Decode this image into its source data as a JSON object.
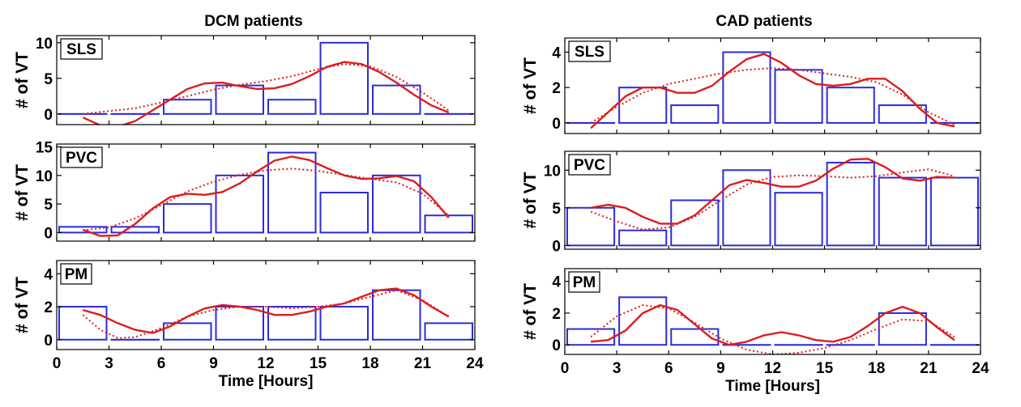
{
  "colors": {
    "bars": "#2b2bdc",
    "smooth": "#dd1d1d",
    "fit": "#dd1d1d",
    "axis": "#000000"
  },
  "chart_data": [
    {
      "type": "bar",
      "title": "DCM patients",
      "xlabel": "Time [Hours]",
      "xlim": [
        0,
        24
      ],
      "xticks": [
        0,
        3,
        6,
        9,
        12,
        15,
        18,
        21,
        24
      ],
      "bin_centers": [
        1.5,
        4.5,
        7.5,
        10.5,
        13.5,
        16.5,
        19.5,
        22.5
      ],
      "panels": [
        {
          "label": "SLS",
          "ylabel": "# of VT",
          "ylim": [
            -1.5,
            11
          ],
          "yticks": [
            0,
            5,
            10
          ],
          "values": [
            0,
            0,
            2,
            4,
            2,
            10,
            4,
            0
          ],
          "smooth": [
            [
              1.5,
              -0.5
            ],
            [
              2.5,
              -1.6
            ],
            [
              3.5,
              -1.8
            ],
            [
              4.5,
              -1.0
            ],
            [
              5.5,
              0.5
            ],
            [
              6.5,
              2.0
            ],
            [
              7.5,
              3.5
            ],
            [
              8.5,
              4.3
            ],
            [
              9.5,
              4.4
            ],
            [
              10.5,
              3.9
            ],
            [
              11.5,
              3.5
            ],
            [
              12.5,
              3.6
            ],
            [
              13.5,
              4.2
            ],
            [
              14.5,
              5.3
            ],
            [
              15.5,
              6.6
            ],
            [
              16.5,
              7.3
            ],
            [
              17.5,
              7.0
            ],
            [
              18.5,
              5.9
            ],
            [
              19.5,
              4.4
            ],
            [
              20.5,
              2.7
            ],
            [
              21.5,
              1.2
            ],
            [
              22.5,
              0.2
            ]
          ],
          "fit": [
            [
              1.5,
              0.0
            ],
            [
              3,
              0.4
            ],
            [
              4.5,
              0.8
            ],
            [
              6,
              1.6
            ],
            [
              7.5,
              2.5
            ],
            [
              9,
              3.4
            ],
            [
              10.5,
              4.1
            ],
            [
              12,
              4.6
            ],
            [
              13.5,
              5.3
            ],
            [
              15,
              6.3
            ],
            [
              16.5,
              7.0
            ],
            [
              18,
              6.7
            ],
            [
              19.5,
              5.2
            ],
            [
              21,
              3.0
            ],
            [
              22.5,
              0.5
            ]
          ]
        },
        {
          "label": "PVC",
          "ylabel": "# of VT",
          "ylim": [
            -1.5,
            15.5
          ],
          "yticks": [
            0,
            5,
            10,
            15
          ],
          "values": [
            1,
            1,
            5,
            10,
            14,
            7,
            10,
            3
          ],
          "smooth": [
            [
              1.5,
              0.5
            ],
            [
              2.5,
              -0.6
            ],
            [
              3.5,
              -0.5
            ],
            [
              4.5,
              1.5
            ],
            [
              5.5,
              4.2
            ],
            [
              6.5,
              6.2
            ],
            [
              7.5,
              6.8
            ],
            [
              8.5,
              6.6
            ],
            [
              9.5,
              7.1
            ],
            [
              10.5,
              8.6
            ],
            [
              11.5,
              10.7
            ],
            [
              12.5,
              12.6
            ],
            [
              13.5,
              13.3
            ],
            [
              14.5,
              12.7
            ],
            [
              15.5,
              11.3
            ],
            [
              16.5,
              10.0
            ],
            [
              17.5,
              9.4
            ],
            [
              18.5,
              9.5
            ],
            [
              19.5,
              9.9
            ],
            [
              20.5,
              9.0
            ],
            [
              21.5,
              6.2
            ],
            [
              22.5,
              2.6
            ]
          ],
          "fit": [
            [
              1.5,
              0.4
            ],
            [
              3,
              0.9
            ],
            [
              4.5,
              2.5
            ],
            [
              6,
              4.8
            ],
            [
              7.5,
              7.2
            ],
            [
              9,
              8.9
            ],
            [
              10.5,
              10.1
            ],
            [
              12,
              10.9
            ],
            [
              13.5,
              11.2
            ],
            [
              15,
              10.8
            ],
            [
              16.5,
              10.1
            ],
            [
              18,
              9.4
            ],
            [
              19.5,
              8.8
            ],
            [
              21,
              6.8
            ],
            [
              22.5,
              3.0
            ]
          ]
        },
        {
          "label": "PM",
          "ylabel": "# of VT",
          "ylim": [
            -0.6,
            4.8
          ],
          "yticks": [
            0,
            2,
            4
          ],
          "values": [
            2,
            0,
            1,
            2,
            2,
            2,
            3,
            1
          ],
          "smooth": [
            [
              1.5,
              1.8
            ],
            [
              2.5,
              1.5
            ],
            [
              3.5,
              1.0
            ],
            [
              4.5,
              0.6
            ],
            [
              5.5,
              0.4
            ],
            [
              6.5,
              0.8
            ],
            [
              7.5,
              1.4
            ],
            [
              8.5,
              1.9
            ],
            [
              9.5,
              2.1
            ],
            [
              10.5,
              2.0
            ],
            [
              11.5,
              1.8
            ],
            [
              12.5,
              1.5
            ],
            [
              13.5,
              1.5
            ],
            [
              14.5,
              1.7
            ],
            [
              15.5,
              2.0
            ],
            [
              16.5,
              2.2
            ],
            [
              17.5,
              2.6
            ],
            [
              18.5,
              3.0
            ],
            [
              19.5,
              3.1
            ],
            [
              20.5,
              2.7
            ],
            [
              21.5,
              2.0
            ],
            [
              22.5,
              1.4
            ]
          ],
          "fit": [
            [
              1.5,
              1.5
            ],
            [
              2.5,
              0.6
            ],
            [
              3.5,
              0.1
            ],
            [
              4.5,
              0.15
            ],
            [
              6,
              0.7
            ],
            [
              7.5,
              1.4
            ],
            [
              9,
              1.8
            ],
            [
              10.5,
              2.0
            ],
            [
              12,
              2.0
            ],
            [
              13.5,
              1.9
            ],
            [
              15,
              2.0
            ],
            [
              16.5,
              2.2
            ],
            [
              18,
              2.6
            ],
            [
              19.5,
              3.0
            ],
            [
              21,
              2.4
            ],
            [
              22.5,
              1.4
            ]
          ]
        }
      ]
    },
    {
      "type": "bar",
      "title": "CAD patients",
      "xlabel": "Time [Hours]",
      "xlim": [
        0,
        24
      ],
      "xticks": [
        0,
        3,
        6,
        9,
        12,
        15,
        18,
        21,
        24
      ],
      "bin_centers": [
        1.5,
        4.5,
        7.5,
        10.5,
        13.5,
        16.5,
        19.5,
        22.5
      ],
      "panels": [
        {
          "label": "SLS",
          "ylabel": "# of VT",
          "ylim": [
            -0.6,
            4.8
          ],
          "yticks": [
            0,
            2,
            4
          ],
          "values": [
            0,
            2,
            1,
            4,
            3,
            2,
            1,
            0
          ],
          "smooth": [
            [
              1.5,
              -0.3
            ],
            [
              2.5,
              0.6
            ],
            [
              3.5,
              1.5
            ],
            [
              4.5,
              2.0
            ],
            [
              5.5,
              2.0
            ],
            [
              6.5,
              1.7
            ],
            [
              7.5,
              1.7
            ],
            [
              8.5,
              2.1
            ],
            [
              9.5,
              2.9
            ],
            [
              10.5,
              3.6
            ],
            [
              11.5,
              3.9
            ],
            [
              12.5,
              3.4
            ],
            [
              13.5,
              2.7
            ],
            [
              14.5,
              2.2
            ],
            [
              15.5,
              2.1
            ],
            [
              16.5,
              2.2
            ],
            [
              17.5,
              2.5
            ],
            [
              18.5,
              2.5
            ],
            [
              19.5,
              1.8
            ],
            [
              20.5,
              0.8
            ],
            [
              21.5,
              0.0
            ],
            [
              22.5,
              -0.2
            ]
          ],
          "fit": [
            [
              1.5,
              0.0
            ],
            [
              3,
              0.9
            ],
            [
              4.5,
              1.7
            ],
            [
              6,
              2.2
            ],
            [
              7.5,
              2.5
            ],
            [
              9,
              2.8
            ],
            [
              10.5,
              3.0
            ],
            [
              12,
              3.1
            ],
            [
              13.5,
              3.0
            ],
            [
              15,
              2.8
            ],
            [
              16.5,
              2.6
            ],
            [
              18,
              2.3
            ],
            [
              19.5,
              1.6
            ],
            [
              21,
              0.6
            ],
            [
              22.5,
              -0.1
            ]
          ]
        },
        {
          "label": "PVC",
          "ylabel": "# of VT",
          "ylim": [
            -0.5,
            12.5
          ],
          "yticks": [
            0,
            5,
            10
          ],
          "values": [
            5,
            2,
            6,
            10,
            7,
            11,
            9,
            9
          ],
          "smooth": [
            [
              1.5,
              5.0
            ],
            [
              2.5,
              5.4
            ],
            [
              3.5,
              5.0
            ],
            [
              4.5,
              3.8
            ],
            [
              5.5,
              2.9
            ],
            [
              6.5,
              2.9
            ],
            [
              7.5,
              4.0
            ],
            [
              8.5,
              6.0
            ],
            [
              9.5,
              8.0
            ],
            [
              10.5,
              8.7
            ],
            [
              11.5,
              8.3
            ],
            [
              12.5,
              7.8
            ],
            [
              13.5,
              7.8
            ],
            [
              14.5,
              8.6
            ],
            [
              15.5,
              10.2
            ],
            [
              16.5,
              11.4
            ],
            [
              17.5,
              11.5
            ],
            [
              18.5,
              10.4
            ],
            [
              19.5,
              8.9
            ],
            [
              20.5,
              8.6
            ],
            [
              21.5,
              9.1
            ],
            [
              22.5,
              9.0
            ]
          ],
          "fit": [
            [
              1.5,
              4.5
            ],
            [
              3,
              3.2
            ],
            [
              4.5,
              2.1
            ],
            [
              6,
              2.4
            ],
            [
              7.5,
              3.8
            ],
            [
              9,
              6.0
            ],
            [
              10.5,
              8.1
            ],
            [
              12,
              9.1
            ],
            [
              13.5,
              9.3
            ],
            [
              15,
              9.2
            ],
            [
              16.5,
              9.0
            ],
            [
              18,
              9.2
            ],
            [
              19.5,
              9.7
            ],
            [
              21,
              10.1
            ],
            [
              22.5,
              9.2
            ]
          ]
        },
        {
          "label": "PM",
          "ylabel": "# of VT",
          "ylim": [
            -0.6,
            4.8
          ],
          "yticks": [
            0,
            2,
            4
          ],
          "values": [
            1,
            3,
            1,
            0,
            0,
            0,
            2,
            0
          ],
          "smooth": [
            [
              1.5,
              0.2
            ],
            [
              2.5,
              0.3
            ],
            [
              3.5,
              0.9
            ],
            [
              4.5,
              2.0
            ],
            [
              5.5,
              2.5
            ],
            [
              6.5,
              2.2
            ],
            [
              7.5,
              1.3
            ],
            [
              8.5,
              0.4
            ],
            [
              9.5,
              0.0
            ],
            [
              10.5,
              0.2
            ],
            [
              11.5,
              0.6
            ],
            [
              12.5,
              0.8
            ],
            [
              13.5,
              0.6
            ],
            [
              14.5,
              0.3
            ],
            [
              15.5,
              0.2
            ],
            [
              16.5,
              0.5
            ],
            [
              17.5,
              1.2
            ],
            [
              18.5,
              2.0
            ],
            [
              19.5,
              2.4
            ],
            [
              20.5,
              2.0
            ],
            [
              21.5,
              1.1
            ],
            [
              22.5,
              0.3
            ]
          ],
          "fit": [
            [
              1.5,
              0.5
            ],
            [
              3,
              1.8
            ],
            [
              4.5,
              2.5
            ],
            [
              6,
              2.3
            ],
            [
              7.5,
              1.4
            ],
            [
              9,
              0.4
            ],
            [
              10.5,
              -0.3
            ],
            [
              12,
              -0.6
            ],
            [
              13.5,
              -0.5
            ],
            [
              15,
              -0.2
            ],
            [
              16.5,
              0.3
            ],
            [
              18,
              1.0
            ],
            [
              19.5,
              1.6
            ],
            [
              21,
              1.5
            ],
            [
              22.5,
              0.5
            ]
          ]
        }
      ]
    }
  ]
}
